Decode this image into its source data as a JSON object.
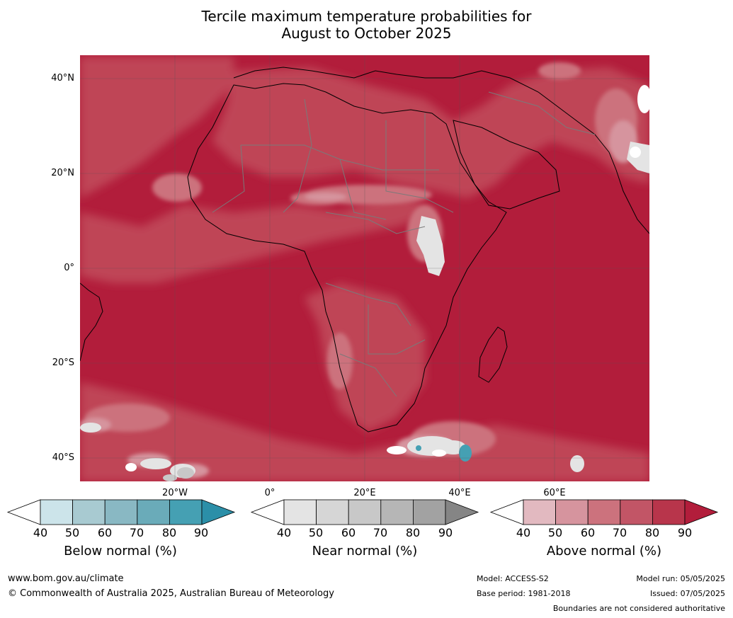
{
  "title_line1": "Tercile maximum temperature probabilities for",
  "title_line2": "August to October 2025",
  "lat_labels": [
    "40°N",
    "20°N",
    "0°",
    "20°S",
    "40°S"
  ],
  "lon_labels": [
    "20°W",
    "0°",
    "20°E",
    "40°E",
    "60°E"
  ],
  "colorbars": [
    {
      "title": "Below normal (%)",
      "ticks": [
        "40",
        "50",
        "60",
        "70",
        "80",
        "90"
      ],
      "colors": [
        "#ffffff",
        "#cce4ea",
        "#a8cad1",
        "#89b8c3",
        "#6aabb9",
        "#45a0b3",
        "#2b8fa8"
      ]
    },
    {
      "title": "Near normal (%)",
      "ticks": [
        "40",
        "50",
        "60",
        "70",
        "80",
        "90"
      ],
      "colors": [
        "#ffffff",
        "#e4e4e4",
        "#d6d6d6",
        "#c8c8c8",
        "#b6b6b6",
        "#a2a2a2",
        "#858585"
      ]
    },
    {
      "title": "Above normal (%)",
      "ticks": [
        "40",
        "50",
        "60",
        "70",
        "80",
        "90"
      ],
      "colors": [
        "#ffffff",
        "#e2b9c0",
        "#d6949e",
        "#cc727d",
        "#c25566",
        "#b8354b",
        "#b21d3b"
      ]
    }
  ],
  "footer": {
    "website": "www.bom.gov.au/climate",
    "copyright": "© Commonwealth of Australia 2025, Australian Bureau of Meteorology",
    "model": "Model: ACCESS-S2",
    "base_period": "Base period: 1981-2018",
    "model_run": "Model run: 05/05/2025",
    "issued": "Issued: 07/05/2025",
    "disclaimer": "Boundaries are not considered authoritative"
  },
  "colors": {
    "above_90": "#b21d3b",
    "above_80": "#b8354b",
    "above_70": "#c25566",
    "above_60": "#cc727d",
    "above_50": "#d6949e",
    "near_normal": "#e4e4e4",
    "below_normal": "#45a0b3"
  }
}
